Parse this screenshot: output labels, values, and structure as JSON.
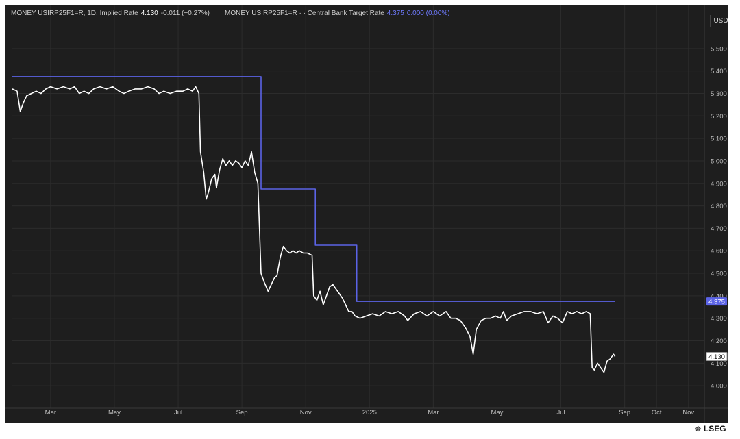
{
  "legend": {
    "series1_symbol": "MONEY USIRP25F1=R, 1D, Implied Rate",
    "series1_value": "4.130",
    "series1_change": "-0.011 (−0.27%)",
    "series2_symbol": "MONEY USIRP25F1=R · · Central Bank Target Rate",
    "series2_value": "4.375",
    "series2_change": "0.000 (0.00%)"
  },
  "toolbar": {
    "currency": "USD"
  },
  "brand": {
    "name": "LSEG",
    "mark": "icon-seal"
  },
  "colors": {
    "background": "#1e1e1e",
    "implied_rate": "#ffffff",
    "target_rate": "#5b63e6",
    "grid": "#2c2c2c",
    "axis_text": "#bfbfbf"
  },
  "chart_data": {
    "type": "line",
    "x_unit": "months since Jan 2024 (continuous)",
    "xlim": [
      1.6,
      23.3
    ],
    "ylim": [
      3.9,
      5.6
    ],
    "y_ticks": [
      "5.500",
      "5.400",
      "5.300",
      "5.200",
      "5.100",
      "5.000",
      "4.900",
      "4.800",
      "4.700",
      "4.600",
      "4.500",
      "4.400",
      "4.300",
      "4.200",
      "4.100",
      "4.000"
    ],
    "x_ticks": [
      {
        "label": "Mar",
        "x": 2.8
      },
      {
        "label": "May",
        "x": 4.8
      },
      {
        "label": "Jul",
        "x": 6.8
      },
      {
        "label": "Sep",
        "x": 8.8
      },
      {
        "label": "Nov",
        "x": 10.8
      },
      {
        "label": "2025",
        "x": 12.8
      },
      {
        "label": "Mar",
        "x": 14.8
      },
      {
        "label": "May",
        "x": 16.8
      },
      {
        "label": "Jul",
        "x": 18.8
      },
      {
        "label": "Sep",
        "x": 20.8
      },
      {
        "label": "Oct",
        "x": 21.8
      },
      {
        "label": "Nov",
        "x": 22.8
      }
    ],
    "grid": true,
    "last_value_labels": {
      "implied_rate": "4.130",
      "target_rate": "4.375"
    },
    "series": [
      {
        "name": "Central Bank Target Rate",
        "color": "#5b63e6",
        "step": true,
        "points": [
          [
            1.6,
            5.375
          ],
          [
            9.4,
            5.375
          ],
          [
            9.4,
            4.875
          ],
          [
            11.1,
            4.875
          ],
          [
            11.1,
            4.625
          ],
          [
            12.4,
            4.625
          ],
          [
            12.4,
            4.375
          ],
          [
            20.5,
            4.375
          ]
        ]
      },
      {
        "name": "Implied Rate",
        "color": "#ffffff",
        "points": [
          [
            1.6,
            5.32
          ],
          [
            1.75,
            5.31
          ],
          [
            1.85,
            5.22
          ],
          [
            1.95,
            5.26
          ],
          [
            2.05,
            5.29
          ],
          [
            2.2,
            5.3
          ],
          [
            2.35,
            5.31
          ],
          [
            2.5,
            5.3
          ],
          [
            2.65,
            5.32
          ],
          [
            2.8,
            5.33
          ],
          [
            3.0,
            5.32
          ],
          [
            3.2,
            5.33
          ],
          [
            3.4,
            5.32
          ],
          [
            3.55,
            5.33
          ],
          [
            3.7,
            5.3
          ],
          [
            3.85,
            5.31
          ],
          [
            4.0,
            5.3
          ],
          [
            4.15,
            5.32
          ],
          [
            4.35,
            5.33
          ],
          [
            4.55,
            5.32
          ],
          [
            4.75,
            5.33
          ],
          [
            4.95,
            5.31
          ],
          [
            5.1,
            5.3
          ],
          [
            5.25,
            5.31
          ],
          [
            5.45,
            5.32
          ],
          [
            5.65,
            5.32
          ],
          [
            5.85,
            5.33
          ],
          [
            6.05,
            5.32
          ],
          [
            6.2,
            5.3
          ],
          [
            6.35,
            5.31
          ],
          [
            6.55,
            5.3
          ],
          [
            6.75,
            5.31
          ],
          [
            6.95,
            5.31
          ],
          [
            7.1,
            5.32
          ],
          [
            7.25,
            5.31
          ],
          [
            7.35,
            5.33
          ],
          [
            7.45,
            5.3
          ],
          [
            7.5,
            5.04
          ],
          [
            7.6,
            4.95
          ],
          [
            7.68,
            4.83
          ],
          [
            7.75,
            4.86
          ],
          [
            7.85,
            4.92
          ],
          [
            7.95,
            4.94
          ],
          [
            8.0,
            4.88
          ],
          [
            8.1,
            4.96
          ],
          [
            8.2,
            5.01
          ],
          [
            8.3,
            4.98
          ],
          [
            8.4,
            5.0
          ],
          [
            8.5,
            4.98
          ],
          [
            8.6,
            5.0
          ],
          [
            8.7,
            4.99
          ],
          [
            8.8,
            4.97
          ],
          [
            8.9,
            5.0
          ],
          [
            9.0,
            4.98
          ],
          [
            9.1,
            5.04
          ],
          [
            9.2,
            4.95
          ],
          [
            9.3,
            4.9
          ],
          [
            9.4,
            4.5
          ],
          [
            9.5,
            4.46
          ],
          [
            9.62,
            4.42
          ],
          [
            9.72,
            4.45
          ],
          [
            9.82,
            4.48
          ],
          [
            9.9,
            4.49
          ],
          [
            10.0,
            4.57
          ],
          [
            10.1,
            4.62
          ],
          [
            10.2,
            4.6
          ],
          [
            10.3,
            4.59
          ],
          [
            10.4,
            4.6
          ],
          [
            10.5,
            4.59
          ],
          [
            10.6,
            4.6
          ],
          [
            10.72,
            4.59
          ],
          [
            10.85,
            4.59
          ],
          [
            11.0,
            4.58
          ],
          [
            11.05,
            4.4
          ],
          [
            11.15,
            4.38
          ],
          [
            11.25,
            4.42
          ],
          [
            11.35,
            4.36
          ],
          [
            11.45,
            4.4
          ],
          [
            11.55,
            4.44
          ],
          [
            11.65,
            4.45
          ],
          [
            11.75,
            4.43
          ],
          [
            11.85,
            4.41
          ],
          [
            11.95,
            4.39
          ],
          [
            12.05,
            4.36
          ],
          [
            12.15,
            4.33
          ],
          [
            12.25,
            4.33
          ],
          [
            12.35,
            4.31
          ],
          [
            12.5,
            4.3
          ],
          [
            12.7,
            4.31
          ],
          [
            12.9,
            4.32
          ],
          [
            13.1,
            4.31
          ],
          [
            13.3,
            4.33
          ],
          [
            13.5,
            4.32
          ],
          [
            13.7,
            4.33
          ],
          [
            13.9,
            4.31
          ],
          [
            14.0,
            4.29
          ],
          [
            14.2,
            4.32
          ],
          [
            14.4,
            4.33
          ],
          [
            14.6,
            4.31
          ],
          [
            14.8,
            4.33
          ],
          [
            15.0,
            4.31
          ],
          [
            15.2,
            4.33
          ],
          [
            15.35,
            4.3
          ],
          [
            15.5,
            4.3
          ],
          [
            15.65,
            4.29
          ],
          [
            15.8,
            4.26
          ],
          [
            15.95,
            4.22
          ],
          [
            16.05,
            4.14
          ],
          [
            16.15,
            4.25
          ],
          [
            16.3,
            4.29
          ],
          [
            16.45,
            4.3
          ],
          [
            16.6,
            4.3
          ],
          [
            16.75,
            4.31
          ],
          [
            16.9,
            4.3
          ],
          [
            17.0,
            4.33
          ],
          [
            17.1,
            4.29
          ],
          [
            17.25,
            4.31
          ],
          [
            17.45,
            4.32
          ],
          [
            17.65,
            4.33
          ],
          [
            17.85,
            4.33
          ],
          [
            18.05,
            4.32
          ],
          [
            18.25,
            4.33
          ],
          [
            18.4,
            4.28
          ],
          [
            18.55,
            4.31
          ],
          [
            18.7,
            4.3
          ],
          [
            18.85,
            4.28
          ],
          [
            19.0,
            4.33
          ],
          [
            19.15,
            4.32
          ],
          [
            19.3,
            4.33
          ],
          [
            19.45,
            4.32
          ],
          [
            19.6,
            4.33
          ],
          [
            19.72,
            4.32
          ],
          [
            19.78,
            4.08
          ],
          [
            19.85,
            4.07
          ],
          [
            19.95,
            4.1
          ],
          [
            20.05,
            4.08
          ],
          [
            20.15,
            4.06
          ],
          [
            20.25,
            4.11
          ],
          [
            20.35,
            4.12
          ],
          [
            20.45,
            4.14
          ],
          [
            20.5,
            4.13
          ]
        ]
      }
    ]
  }
}
